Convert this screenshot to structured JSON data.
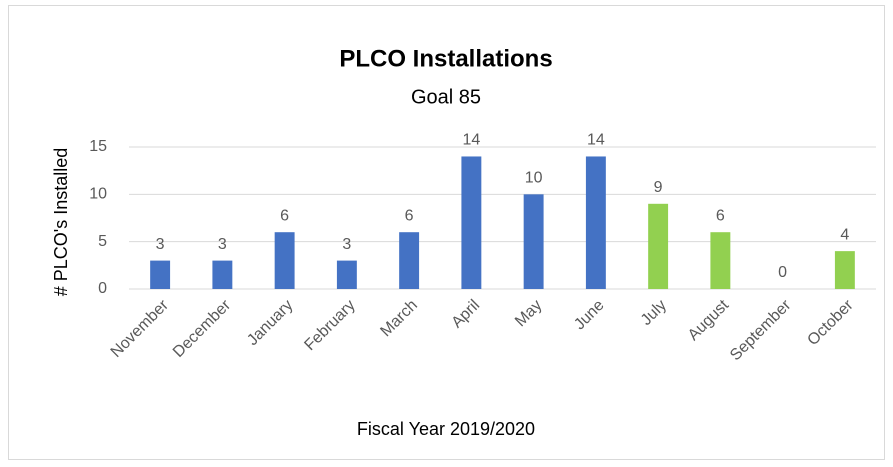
{
  "chart_data": {
    "type": "bar",
    "title": "PLCO Installations",
    "subtitle": "Goal 85",
    "x_label": "Fiscal Year 2019/2020",
    "y_label": "# PLCO's Installed",
    "categories": [
      "November",
      "December",
      "January",
      "February",
      "March",
      "April",
      "May",
      "June",
      "July",
      "August",
      "September",
      "October"
    ],
    "values": [
      3,
      3,
      6,
      3,
      6,
      14,
      10,
      14,
      9,
      6,
      0,
      4
    ],
    "colors": [
      "#4472c4",
      "#4472c4",
      "#4472c4",
      "#4472c4",
      "#4472c4",
      "#4472c4",
      "#4472c4",
      "#4472c4",
      "#92d050",
      "#92d050",
      "#92d050",
      "#92d050"
    ],
    "ylim": [
      0,
      15
    ],
    "yticks": [
      0,
      5,
      10,
      15
    ],
    "grid": true
  }
}
